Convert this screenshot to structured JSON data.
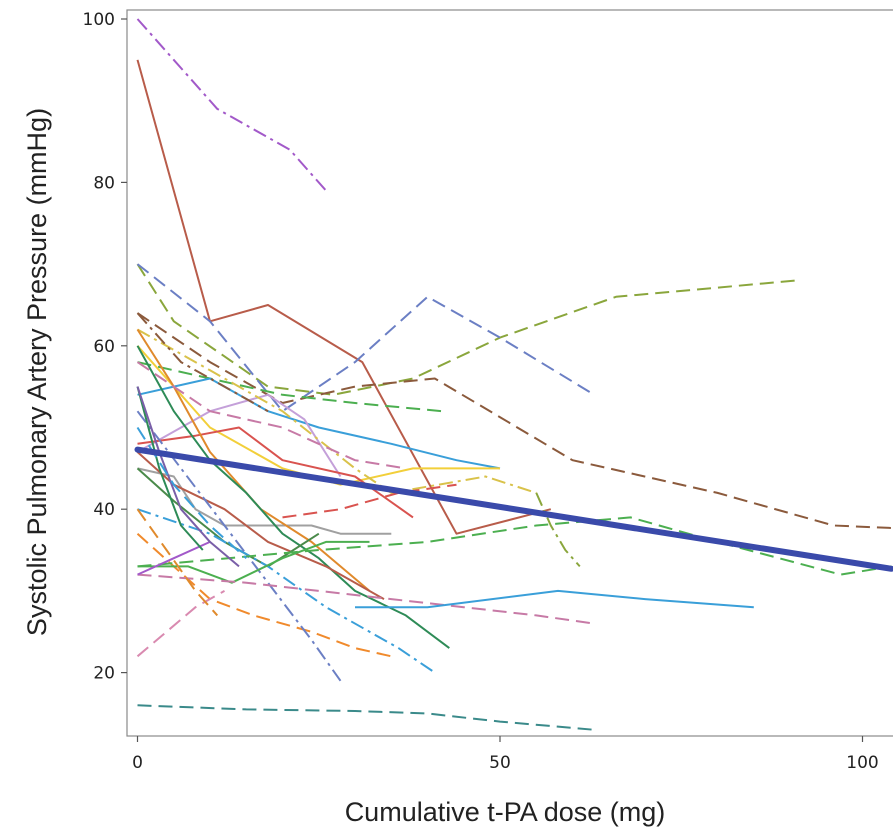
{
  "chart_data": {
    "type": "line",
    "title": "",
    "xlabel": "Cumulative t-PA dose (mg)",
    "ylabel": "Systolic Pulmonary Artery Pressure (mmHg)",
    "xlim": [
      -1,
      104
    ],
    "ylim": [
      12,
      101
    ],
    "xticks": [
      0,
      50,
      100
    ],
    "yticks": [
      20,
      40,
      60,
      80,
      100
    ],
    "grid": false,
    "legend": "none",
    "series": [
      {
        "color": "#a259c9",
        "dash": "dashdot",
        "x": [
          0,
          5,
          11,
          21,
          26
        ],
        "y": [
          100,
          95,
          89,
          84,
          79
        ]
      },
      {
        "color": "#b85c4a",
        "dash": "solid",
        "x": [
          0,
          10,
          18,
          31,
          44,
          57
        ],
        "y": [
          95,
          63,
          65,
          58,
          37,
          40
        ]
      },
      {
        "color": "#8aa63c",
        "dash": "dashed",
        "x": [
          0,
          5,
          18,
          27,
          38,
          50,
          66,
          91
        ],
        "y": [
          70,
          63,
          55,
          54,
          56,
          61,
          66,
          68
        ]
      },
      {
        "color": "#6b7fc4",
        "dash": "dashed",
        "x": [
          0,
          10,
          20,
          30,
          40,
          50,
          63
        ],
        "y": [
          70,
          63,
          52,
          58,
          66,
          61,
          54
        ]
      },
      {
        "color": "#8b5a3c",
        "dash": "dashed",
        "x": [
          0,
          10,
          20,
          30,
          41,
          60,
          80,
          96,
          104
        ],
        "y": [
          64,
          58,
          53,
          55,
          56,
          46,
          42,
          38,
          37.7
        ]
      },
      {
        "color": "#4caf50",
        "dash": "dashed",
        "x": [
          0,
          10,
          20,
          30,
          42
        ],
        "y": [
          58,
          56,
          54,
          53,
          52
        ]
      },
      {
        "color": "#3a9fd9",
        "dash": "solid",
        "x": [
          0,
          5,
          10,
          18,
          25,
          35,
          44,
          50
        ],
        "y": [
          54,
          55,
          56,
          52,
          50,
          48,
          46,
          45
        ]
      },
      {
        "color": "#f2cf3a",
        "dash": "solid",
        "x": [
          0,
          5,
          10,
          20,
          28,
          38,
          50
        ],
        "y": [
          60,
          55,
          50,
          45,
          43,
          45,
          45
        ]
      },
      {
        "color": "#c4a0d9",
        "dash": "solid",
        "x": [
          0,
          10,
          18,
          23,
          28
        ],
        "y": [
          47,
          52,
          54,
          51,
          44
        ]
      },
      {
        "color": "#d9534f",
        "dash": "solid",
        "x": [
          0,
          8,
          14,
          20,
          30,
          38
        ],
        "y": [
          48,
          49,
          50,
          46,
          44,
          39
        ]
      },
      {
        "color": "#d9c24a",
        "dash": "dashdot",
        "x": [
          0,
          10,
          20,
          30,
          35,
          48,
          55
        ],
        "y": [
          62,
          57,
          52,
          45,
          42,
          44,
          42
        ]
      },
      {
        "color": "#8aa63c",
        "dash": "dashdot",
        "x": [
          55,
          57,
          59,
          61
        ],
        "y": [
          42,
          38,
          35,
          33
        ]
      },
      {
        "color": "#a0a0a0",
        "dash": "solid",
        "x": [
          0,
          5,
          8,
          12,
          16,
          20,
          24,
          28,
          35
        ],
        "y": [
          45,
          44,
          40,
          38,
          38,
          38,
          38,
          37,
          37
        ]
      },
      {
        "color": "#e08a2c",
        "dash": "solid",
        "x": [
          0,
          5,
          10,
          17,
          24,
          32
        ],
        "y": [
          62,
          55,
          47,
          40,
          36,
          30
        ]
      },
      {
        "color": "#2e8b57",
        "dash": "solid",
        "x": [
          0,
          5,
          10,
          15,
          20,
          25,
          30,
          37,
          43
        ],
        "y": [
          60,
          52,
          46,
          42,
          37,
          34,
          30,
          27,
          23
        ]
      },
      {
        "color": "#b85c4a",
        "dash": "solid",
        "x": [
          0,
          5,
          12,
          18,
          26,
          34
        ],
        "y": [
          47,
          43,
          40,
          36,
          33,
          29
        ]
      },
      {
        "color": "#4a8a4a",
        "dash": "solid",
        "x": [
          0,
          5,
          12,
          18,
          25
        ],
        "y": [
          45,
          41,
          36,
          33,
          37
        ]
      },
      {
        "color": "#f08a2c",
        "dash": "dashed",
        "x": [
          0,
          5,
          10,
          16,
          24,
          30,
          35
        ],
        "y": [
          37,
          33,
          29,
          27,
          25,
          23,
          22
        ]
      },
      {
        "color": "#3a9fd9",
        "dash": "dashdot",
        "x": [
          0,
          10,
          18,
          26,
          36,
          41
        ],
        "y": [
          40,
          37,
          33,
          28,
          23,
          20
        ]
      },
      {
        "color": "#6b7fc4",
        "dash": "dashdot",
        "x": [
          0,
          6,
          12,
          18,
          24,
          28
        ],
        "y": [
          52,
          45,
          38,
          31,
          24,
          19
        ]
      },
      {
        "color": "#4caf50",
        "dash": "solid",
        "x": [
          0,
          7,
          13,
          20,
          26,
          32
        ],
        "y": [
          33,
          33,
          31,
          34,
          36,
          36
        ]
      },
      {
        "color": "#4caf50",
        "dash": "dashed",
        "x": [
          0,
          25,
          40,
          55,
          68,
          80,
          97,
          104
        ],
        "y": [
          33,
          35,
          36,
          38,
          39,
          36,
          32,
          33
        ]
      },
      {
        "color": "#c77aa6",
        "dash": "dashed",
        "x": [
          0,
          15,
          25,
          35,
          45,
          55,
          63
        ],
        "y": [
          32,
          31,
          30,
          29,
          28,
          27,
          26
        ]
      },
      {
        "color": "#3a9fd9",
        "dash": "solid",
        "x": [
          30,
          40,
          58,
          70,
          85
        ],
        "y": [
          28,
          28,
          30,
          29,
          28
        ]
      },
      {
        "color": "#3a8a8a",
        "dash": "dashed",
        "x": [
          0,
          15,
          30,
          40,
          50,
          63
        ],
        "y": [
          16,
          15.5,
          15.3,
          15,
          14,
          13
        ]
      },
      {
        "color": "#d98ab0",
        "dash": "dashed",
        "x": [
          0,
          4,
          8,
          12
        ],
        "y": [
          22,
          25,
          28,
          30
        ]
      },
      {
        "color": "#c77aa6",
        "dash": "dashed",
        "x": [
          0,
          10,
          20,
          30,
          37
        ],
        "y": [
          58,
          52,
          50,
          46,
          45
        ]
      },
      {
        "color": "#8b5a3c",
        "dash": "dashdot",
        "x": [
          0,
          6,
          12,
          18
        ],
        "y": [
          64,
          58,
          55,
          52
        ]
      },
      {
        "color": "#d9534f",
        "dash": "dashed",
        "x": [
          20,
          28,
          36,
          44
        ],
        "y": [
          39,
          40,
          42,
          43
        ]
      },
      {
        "color": "#a259c9",
        "dash": "solid",
        "x": [
          0,
          5,
          10
        ],
        "y": [
          32,
          34,
          36
        ]
      },
      {
        "color": "#e08a2c",
        "dash": "dashed",
        "x": [
          0,
          4,
          8,
          11
        ],
        "y": [
          40,
          35,
          30,
          27
        ]
      },
      {
        "color": "#2e8b57",
        "dash": "solid",
        "x": [
          0,
          3,
          6,
          9
        ],
        "y": [
          55,
          45,
          38,
          35
        ]
      },
      {
        "color": "#7a5fa8",
        "dash": "solid",
        "x": [
          0,
          3,
          6,
          10,
          14
        ],
        "y": [
          55,
          47,
          40,
          36,
          33
        ]
      },
      {
        "color": "#3a9fd9",
        "dash": "dashed",
        "x": [
          0,
          5,
          10,
          15
        ],
        "y": [
          50,
          43,
          38,
          34
        ]
      }
    ],
    "fit": {
      "color": "#3a4aaa",
      "x": [
        0,
        104
      ],
      "y": [
        47.3,
        32.7
      ]
    }
  }
}
